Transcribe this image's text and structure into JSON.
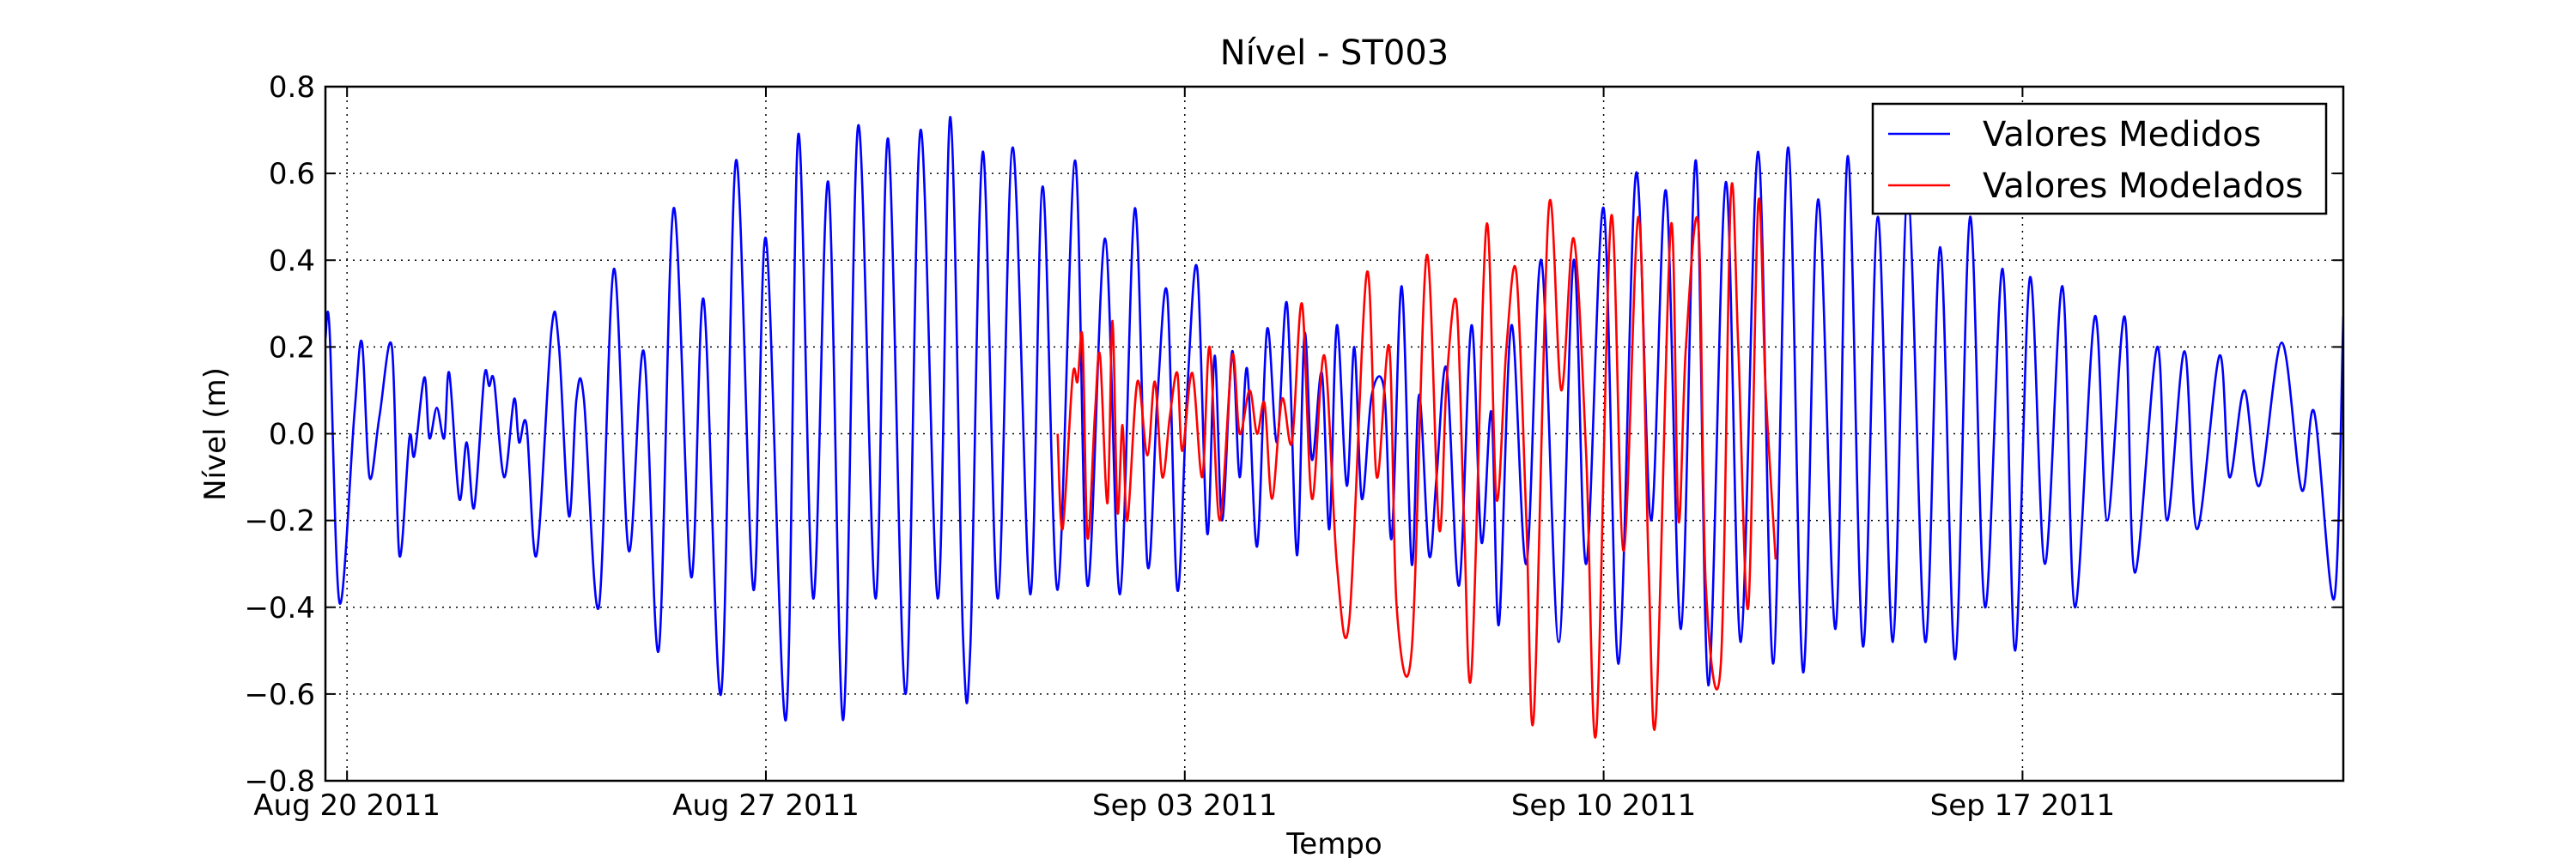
{
  "chart_data": {
    "type": "line",
    "title": "Nível - ST003",
    "xlabel": "Tempo",
    "ylabel": "Nível (m)",
    "xlim": [
      "2011-08-19T15:20",
      "2011-09-22T08:40"
    ],
    "xticks": [
      {
        "value": "2011-08-20T00:00",
        "label": "Aug 20 2011"
      },
      {
        "value": "2011-08-27T00:00",
        "label": "Aug 27 2011"
      },
      {
        "value": "2011-09-03T00:00",
        "label": "Sep 03 2011"
      },
      {
        "value": "2011-09-10T00:00",
        "label": "Sep 10 2011"
      },
      {
        "value": "2011-09-17T00:00",
        "label": "Sep 17 2011"
      }
    ],
    "ylim": [
      -0.8,
      0.8
    ],
    "yticks": [
      {
        "value": -0.8,
        "label": "−0.8"
      },
      {
        "value": -0.6,
        "label": "−0.6"
      },
      {
        "value": -0.4,
        "label": "−0.4"
      },
      {
        "value": -0.2,
        "label": "−0.2"
      },
      {
        "value": 0,
        "label": "0.0"
      },
      0.2,
      0.4,
      0.6,
      0.8
    ],
    "grid": true,
    "legend": "upper right",
    "series": [
      {
        "name": "Valores Medidos",
        "color": "#0000ff",
        "x": [
          "2011-08-19T15:20",
          "2011-08-19T17:00",
          "2011-08-19T21:00",
          "2011-08-20T03:00",
          "2011-08-20T06:00",
          "2011-08-20T09:00",
          "2011-08-20T13:00",
          "2011-08-20T18:00",
          "2011-08-20T21:00",
          "2011-08-21T01:00",
          "2011-08-21T03:00",
          "2011-08-21T07:00",
          "2011-08-21T09:00",
          "2011-08-21T12:00",
          "2011-08-21T15:00",
          "2011-08-21T17:00",
          "2011-08-21T21:00",
          "2011-08-22T00:00",
          "2011-08-22T03:00",
          "2011-08-22T07:00",
          "2011-08-22T09:00",
          "2011-08-22T11:00",
          "2011-08-22T15:00",
          "2011-08-22T19:00",
          "2011-08-22T21:00",
          "2011-08-23T00:00",
          "2011-08-23T04:00",
          "2011-08-23T10:00",
          "2011-08-23T13:00",
          "2011-08-23T17:00",
          "2011-08-23T20:00",
          "2011-08-23T23:00",
          "2011-08-24T05:00",
          "2011-08-24T11:00",
          "2011-08-24T17:00",
          "2011-08-24T23:00",
          "2011-08-25T05:00",
          "2011-08-25T11:00",
          "2011-08-25T18:00",
          "2011-08-25T23:00",
          "2011-08-26T06:00",
          "2011-08-26T12:00",
          "2011-08-26T19:00",
          "2011-08-27T00:00",
          "2011-08-27T08:00",
          "2011-08-27T13:00",
          "2011-08-27T19:00",
          "2011-08-28T01:00",
          "2011-08-28T07:00",
          "2011-08-28T13:00",
          "2011-08-28T20:00",
          "2011-08-29T01:00",
          "2011-08-29T08:00",
          "2011-08-29T14:00",
          "2011-08-29T21:00",
          "2011-08-30T02:00",
          "2011-08-30T07:00",
          "2011-08-30T10:00",
          "2011-08-30T15:00",
          "2011-08-30T21:00",
          "2011-08-31T03:00",
          "2011-08-31T10:00",
          "2011-08-31T15:00",
          "2011-08-31T21:00",
          "2011-09-01T04:00",
          "2011-09-01T09:00",
          "2011-09-01T16:00",
          "2011-09-01T22:00",
          "2011-09-02T04:00",
          "2011-09-02T09:00",
          "2011-09-02T13:00",
          "2011-09-02T17:00",
          "2011-09-02T21:00",
          "2011-09-03T01:00",
          "2011-09-03T05:00",
          "2011-09-03T09:00",
          "2011-09-03T12:00",
          "2011-09-03T15:00",
          "2011-09-03T19:00",
          "2011-09-03T22:00",
          "2011-09-04T01:00",
          "2011-09-04T05:00",
          "2011-09-04T09:00",
          "2011-09-04T13:00",
          "2011-09-04T17:00",
          "2011-09-04T21:00",
          "2011-09-05T00:00",
          "2011-09-05T03:00",
          "2011-09-05T07:00",
          "2011-09-05T10:00",
          "2011-09-05T13:00",
          "2011-09-05T17:00",
          "2011-09-05T20:00",
          "2011-09-05T23:00",
          "2011-09-06T03:00",
          "2011-09-06T08:00",
          "2011-09-06T11:00",
          "2011-09-06T15:00",
          "2011-09-06T19:00",
          "2011-09-06T22:00",
          "2011-09-07T02:00",
          "2011-09-07T05:00",
          "2011-09-07T09:00",
          "2011-09-07T14:00",
          "2011-09-07T19:00",
          "2011-09-07T23:00",
          "2011-09-08T03:00",
          "2011-09-08T06:00",
          "2011-09-08T11:00",
          "2011-09-08T17:00",
          "2011-09-08T23:00",
          "2011-09-09T06:00",
          "2011-09-09T12:00",
          "2011-09-09T17:00",
          "2011-09-10T00:00",
          "2011-09-10T06:00",
          "2011-09-10T13:00",
          "2011-09-10T19:00",
          "2011-09-11T01:00",
          "2011-09-11T07:00",
          "2011-09-11T13:00",
          "2011-09-11T18:00",
          "2011-09-12T01:00",
          "2011-09-12T07:00",
          "2011-09-12T14:00",
          "2011-09-12T20:00",
          "2011-09-13T02:00",
          "2011-09-13T08:00",
          "2011-09-13T14:00",
          "2011-09-13T21:00",
          "2011-09-14T02:00",
          "2011-09-14T08:00",
          "2011-09-14T14:00",
          "2011-09-14T20:00",
          "2011-09-15T02:00",
          "2011-09-15T09:00",
          "2011-09-15T15:00",
          "2011-09-15T21:00",
          "2011-09-16T03:00",
          "2011-09-16T09:00",
          "2011-09-16T16:00",
          "2011-09-16T21:00",
          "2011-09-17T03:00",
          "2011-09-17T09:00",
          "2011-09-17T16:00",
          "2011-09-17T21:00",
          "2011-09-18T05:00",
          "2011-09-18T10:00",
          "2011-09-18T17:00",
          "2011-09-18T21:00",
          "2011-09-19T06:00",
          "2011-09-19T10:00",
          "2011-09-19T17:00",
          "2011-09-19T22:00",
          "2011-09-20T07:00",
          "2011-09-20T11:00",
          "2011-09-20T17:00",
          "2011-09-20T23:00",
          "2011-09-21T08:00",
          "2011-09-21T16:00",
          "2011-09-21T21:00",
          "2011-09-22T05:00",
          "2011-09-22T08:40"
        ],
        "values": [
          0.22,
          0.24,
          -0.39,
          0.05,
          0.21,
          -0.1,
          0.04,
          0.2,
          -0.28,
          -0.01,
          -0.05,
          0.13,
          -0.01,
          0.06,
          -0.01,
          0.14,
          -0.15,
          -0.02,
          -0.17,
          0.13,
          0.11,
          0.12,
          -0.1,
          0.08,
          -0.02,
          0.02,
          -0.28,
          0.24,
          0.2,
          -0.19,
          0.08,
          0.08,
          -0.4,
          0.38,
          -0.27,
          0.19,
          -0.5,
          0.52,
          -0.33,
          0.31,
          -0.6,
          0.63,
          -0.36,
          0.45,
          -0.66,
          0.69,
          -0.38,
          0.58,
          -0.66,
          0.71,
          -0.38,
          0.68,
          -0.6,
          0.7,
          -0.38,
          0.73,
          -0.46,
          -0.49,
          0.65,
          -0.38,
          0.66,
          -0.37,
          0.57,
          -0.36,
          0.63,
          -0.35,
          0.45,
          -0.37,
          0.52,
          -0.3,
          0.08,
          0.32,
          -0.36,
          0.1,
          0.38,
          -0.23,
          0.18,
          -0.2,
          0.19,
          -0.1,
          0.15,
          -0.26,
          0.24,
          -0.02,
          0.3,
          -0.28,
          0.23,
          -0.06,
          0.14,
          -0.22,
          0.25,
          -0.12,
          0.2,
          -0.15,
          0.09,
          0.1,
          -0.24,
          0.34,
          -0.3,
          0.09,
          -0.28,
          -0.1,
          0.15,
          -0.35,
          0.25,
          -0.25,
          0.05,
          -0.44,
          0.25,
          -0.3,
          0.4,
          -0.48,
          0.4,
          -0.3,
          0.52,
          -0.53,
          0.6,
          -0.2,
          0.56,
          -0.45,
          0.63,
          -0.58,
          0.58,
          -0.48,
          0.65,
          -0.53,
          0.66,
          -0.55,
          0.54,
          -0.45,
          0.64,
          -0.49,
          0.5,
          -0.48,
          0.55,
          -0.48,
          0.43,
          -0.52,
          0.5,
          -0.4,
          0.38,
          -0.5,
          0.36,
          -0.3,
          0.34,
          -0.4,
          0.27,
          -0.2,
          0.27,
          -0.32,
          0.2,
          -0.2,
          0.19,
          -0.22,
          0.18,
          -0.1,
          0.1,
          -0.12,
          0.21,
          -0.13,
          0.05,
          -0.38,
          0.27
        ]
      },
      {
        "name": "Valores Modelados",
        "color": "#ff0000",
        "x": [
          "2011-08-31T21:00",
          "2011-08-31T23:00",
          "2011-09-01T03:00",
          "2011-09-01T05:00",
          "2011-09-01T07:00",
          "2011-09-01T09:00",
          "2011-09-01T12:00",
          "2011-09-01T14:00",
          "2011-09-01T17:00",
          "2011-09-01T19:00",
          "2011-09-01T21:00",
          "2011-09-01T23:00",
          "2011-09-02T01:00",
          "2011-09-02T05:00",
          "2011-09-02T09:00",
          "2011-09-02T12:00",
          "2011-09-02T15:00",
          "2011-09-02T18:00",
          "2011-09-02T21:00",
          "2011-09-02T23:00",
          "2011-09-03T03:00",
          "2011-09-03T07:00",
          "2011-09-03T10:00",
          "2011-09-03T14:00",
          "2011-09-03T19:00",
          "2011-09-03T22:00",
          "2011-09-04T02:00",
          "2011-09-04T05:00",
          "2011-09-04T08:00",
          "2011-09-04T11:00",
          "2011-09-04T15:00",
          "2011-09-04T19:00",
          "2011-09-04T23:00",
          "2011-09-05T03:00",
          "2011-09-05T08:00",
          "2011-09-05T13:00",
          "2011-09-05T18:00",
          "2011-09-06T01:00",
          "2011-09-06T05:00",
          "2011-09-06T10:00",
          "2011-09-06T13:00",
          "2011-09-06T19:00",
          "2011-09-07T01:00",
          "2011-09-07T06:00",
          "2011-09-07T09:00",
          "2011-09-07T13:00",
          "2011-09-07T16:00",
          "2011-09-07T19:00",
          "2011-09-08T01:00",
          "2011-09-08T05:00",
          "2011-09-08T09:00",
          "2011-09-08T13:00",
          "2011-09-08T17:00",
          "2011-09-08T20:00",
          "2011-09-09T02:00",
          "2011-09-09T07:00",
          "2011-09-09T12:00",
          "2011-09-09T17:00",
          "2011-09-09T21:00",
          "2011-09-10T03:00",
          "2011-09-10T08:00",
          "2011-09-10T14:00",
          "2011-09-10T18:00",
          "2011-09-10T21:00",
          "2011-09-11T03:00",
          "2011-09-11T06:00",
          "2011-09-11T09:00",
          "2011-09-11T14:00",
          "2011-09-11T17:00",
          "2011-09-11T23:00",
          "2011-09-12T03:00",
          "2011-09-12T06:00",
          "2011-09-12T10:00",
          "2011-09-12T14:00",
          "2011-09-12T17:00",
          "2011-09-12T21:00"
        ],
        "values": [
          0.0,
          -0.22,
          0.13,
          0.12,
          0.22,
          -0.24,
          0.05,
          0.18,
          -0.16,
          0.26,
          -0.18,
          0.02,
          -0.2,
          0.12,
          -0.05,
          0.12,
          -0.1,
          0.04,
          0.14,
          -0.04,
          0.14,
          -0.1,
          0.2,
          -0.2,
          0.18,
          0.0,
          0.1,
          0.0,
          0.07,
          -0.15,
          0.08,
          -0.02,
          0.3,
          -0.15,
          0.18,
          -0.3,
          -0.43,
          0.37,
          -0.1,
          0.2,
          -0.4,
          -0.5,
          0.41,
          -0.22,
          0.12,
          0.3,
          -0.2,
          -0.55,
          0.48,
          -0.15,
          0.2,
          0.37,
          -0.2,
          -0.65,
          0.52,
          0.1,
          0.45,
          -0.05,
          -0.69,
          0.5,
          -0.27,
          0.5,
          -0.3,
          -0.65,
          0.48,
          -0.2,
          0.2,
          0.48,
          -0.35,
          -0.53,
          0.55,
          0.2,
          -0.4,
          0.53,
          0.1,
          -0.29
        ]
      }
    ]
  }
}
